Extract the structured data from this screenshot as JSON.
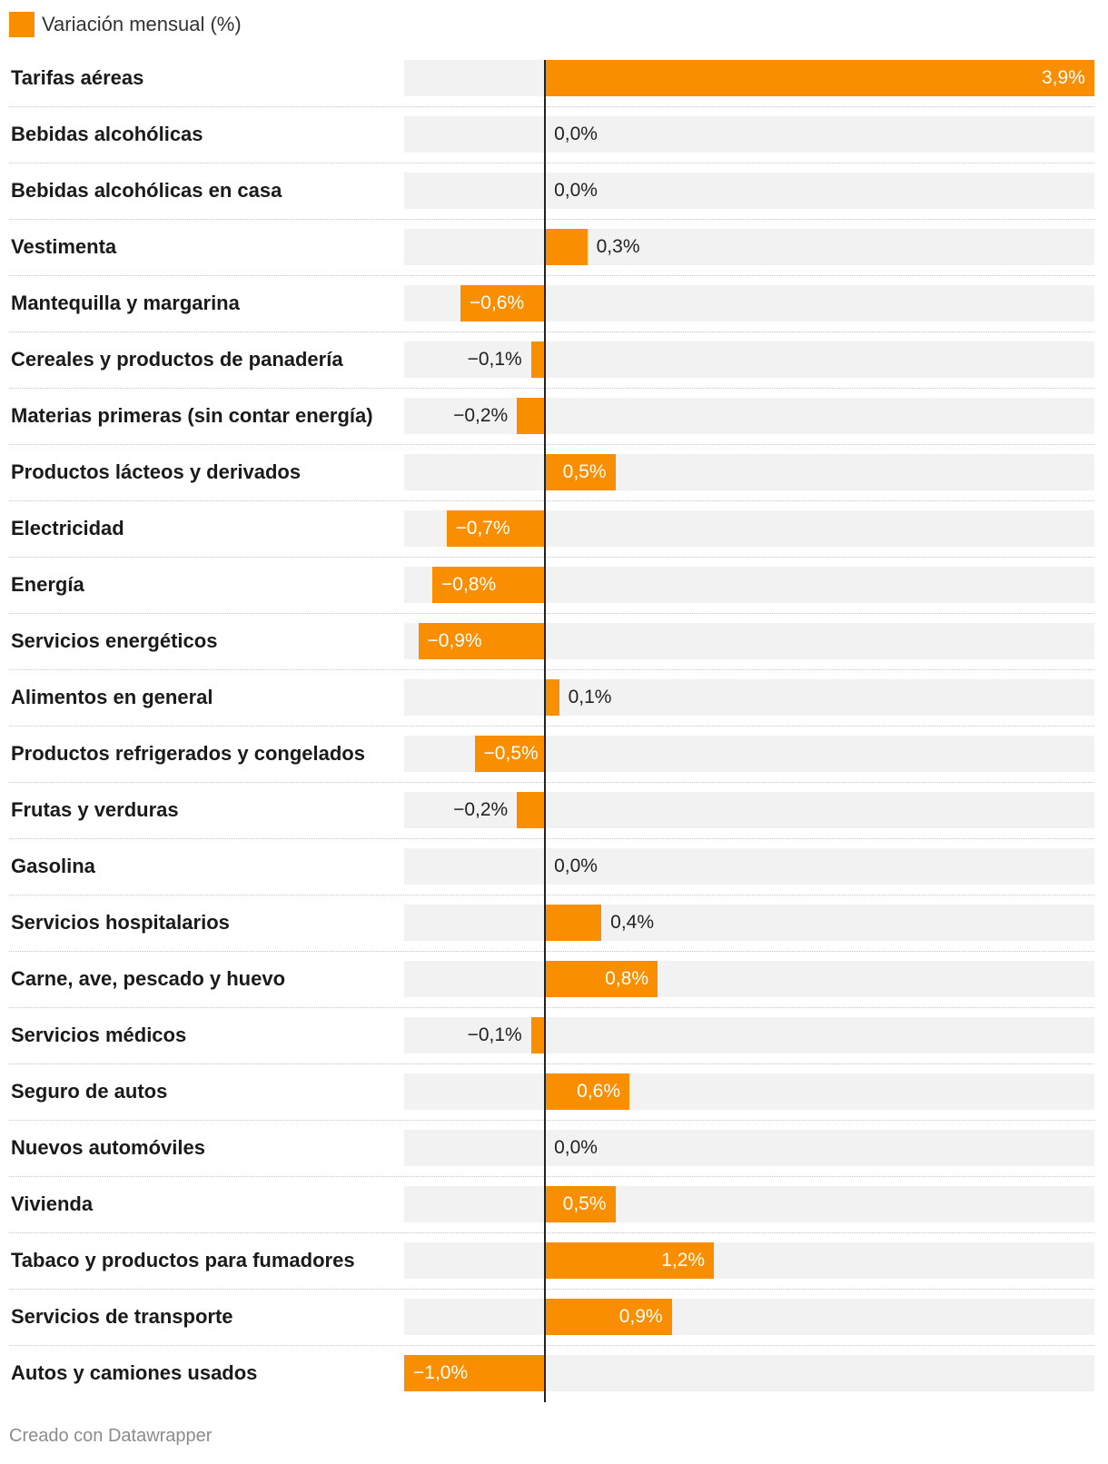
{
  "legend": {
    "label": "Variación mensual (%)",
    "color": "#f98e00"
  },
  "credit": "Creado con Datawrapper",
  "chart_data": {
    "type": "bar",
    "orientation": "horizontal",
    "xlim": [
      -1.0,
      3.9
    ],
    "series": [
      {
        "name": "Variación mensual (%)",
        "color": "#f98e00"
      }
    ],
    "categories": [
      "Tarifas aéreas",
      "Bebidas alcohólicas",
      "Bebidas alcohólicas en casa",
      "Vestimenta",
      "Mantequilla y margarina",
      "Cereales y productos de panadería",
      "Materias primeras (sin contar energía)",
      "Productos lácteos y derivados",
      "Electricidad",
      "Energía",
      "Servicios energéticos",
      "Alimentos en general",
      "Productos refrigerados y congelados",
      "Frutas y verduras",
      "Gasolina",
      "Servicios hospitalarios",
      "Carne, ave, pescado y huevo",
      "Servicios médicos",
      "Seguro de autos",
      "Nuevos automóviles",
      "Vivienda",
      "Tabaco y productos para fumadores",
      "Servicios de transporte",
      "Autos y camiones usados"
    ],
    "values": [
      3.9,
      0.0,
      0.0,
      0.3,
      -0.6,
      -0.1,
      -0.2,
      0.5,
      -0.7,
      -0.8,
      -0.9,
      0.1,
      -0.5,
      -0.2,
      0.0,
      0.4,
      0.8,
      -0.1,
      0.6,
      0.0,
      0.5,
      1.2,
      0.9,
      -1.0
    ],
    "value_labels": [
      "3,9%",
      "0,0%",
      "0,0%",
      "0,3%",
      "−0,6%",
      "−0,1%",
      "−0,2%",
      "0,5%",
      "−0,7%",
      "−0,8%",
      "−0,9%",
      "0,1%",
      "−0,5%",
      "−0,2%",
      "0,0%",
      "0,4%",
      "0,8%",
      "−0,1%",
      "0,6%",
      "0,0%",
      "0,5%",
      "1,2%",
      "0,9%",
      "−1,0%"
    ]
  }
}
